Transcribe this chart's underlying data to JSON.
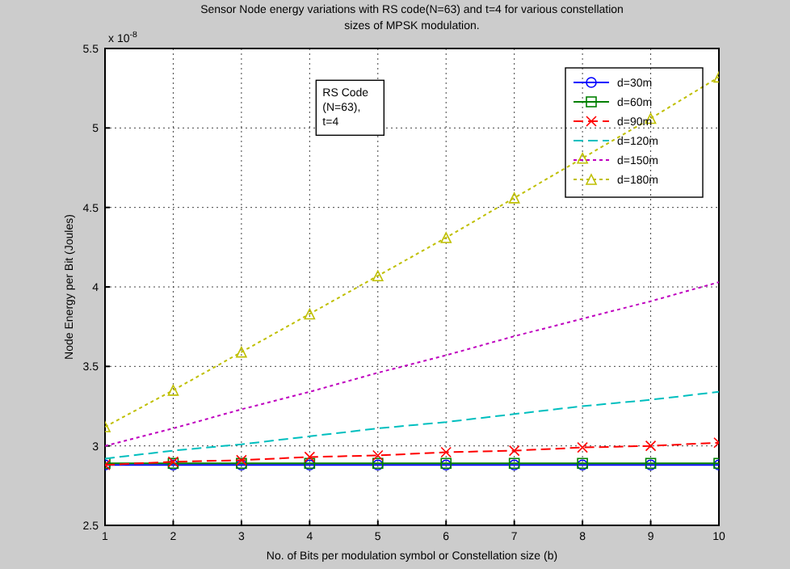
{
  "chart_data": {
    "type": "line",
    "title": "Sensor Node energy variations with RS code(N=63) and t=4 for various constellation\nsizes of MPSK modulation.",
    "xlabel": "No. of Bits per modulation symbol or Constellation size (b)",
    "ylabel": "Node Energy per Bit (Joules)",
    "x": [
      1,
      2,
      3,
      4,
      5,
      6,
      7,
      8,
      9,
      10
    ],
    "series": [
      {
        "name": "d=30m",
        "color": "#0000ff",
        "marker": "circle",
        "line_style": "solid",
        "values": [
          2.88,
          2.88,
          2.88,
          2.88,
          2.88,
          2.88,
          2.88,
          2.88,
          2.88,
          2.88
        ]
      },
      {
        "name": "d=60m",
        "color": "#008000",
        "marker": "square",
        "line_style": "solid",
        "values": [
          2.89,
          2.89,
          2.89,
          2.89,
          2.89,
          2.89,
          2.89,
          2.89,
          2.89,
          2.89
        ]
      },
      {
        "name": "d=90m",
        "color": "#ff0000",
        "marker": "cross",
        "line_style": "dashed",
        "values": [
          2.88,
          2.9,
          2.91,
          2.93,
          2.94,
          2.96,
          2.97,
          2.99,
          3.0,
          3.02
        ]
      },
      {
        "name": "d=120m",
        "color": "#00bfbf",
        "marker": "none",
        "line_style": "dashed",
        "values": [
          2.92,
          2.97,
          3.01,
          3.06,
          3.11,
          3.15,
          3.2,
          3.25,
          3.29,
          3.34
        ]
      },
      {
        "name": "d=150m",
        "color": "#bf00bf",
        "marker": "none",
        "line_style": "dotted",
        "values": [
          3.0,
          3.11,
          3.23,
          3.34,
          3.46,
          3.57,
          3.69,
          3.8,
          3.91,
          4.03
        ]
      },
      {
        "name": "d=180m",
        "color": "#bfbf00",
        "marker": "triangle",
        "line_style": "dotted",
        "values": [
          3.12,
          3.35,
          3.59,
          3.83,
          4.07,
          4.31,
          4.56,
          4.81,
          5.06,
          5.32
        ]
      }
    ],
    "xlim": [
      1,
      10
    ],
    "xticks": [
      1,
      2,
      3,
      4,
      5,
      6,
      7,
      8,
      9,
      10
    ],
    "ylim": [
      2.5,
      5.5
    ],
    "yticks": [
      2.5,
      3,
      3.5,
      4,
      4.5,
      5,
      5.5
    ],
    "grid": true,
    "legend": "top right",
    "annotations": [
      "x 10$^{-8}$",
      "RS Code\n(N=63),\nt=4"
    ]
  }
}
